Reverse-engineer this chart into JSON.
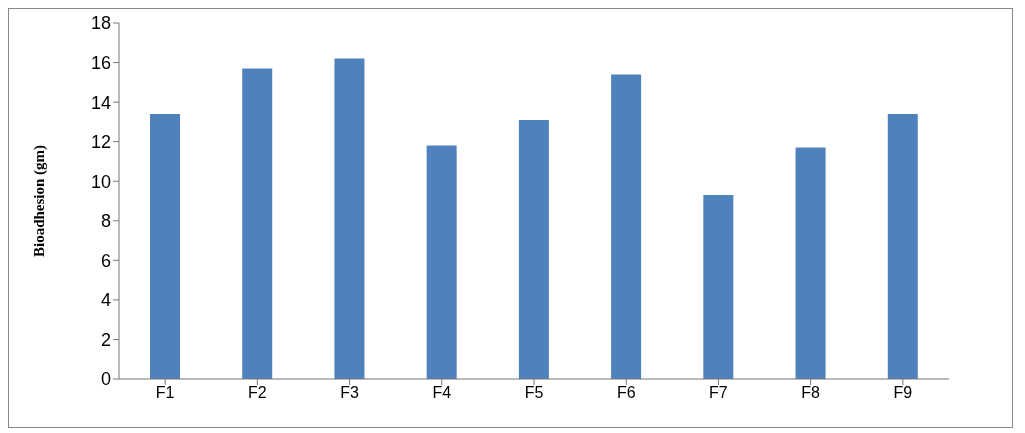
{
  "chart_data": {
    "type": "bar",
    "ylabel": "Bioadhesion (gm)",
    "categories": [
      "F1",
      "F2",
      "F3",
      "F4",
      "F5",
      "F6",
      "F7",
      "F8",
      "F9"
    ],
    "values": [
      13.4,
      15.7,
      16.2,
      11.8,
      13.1,
      15.4,
      9.3,
      11.7,
      13.4
    ],
    "color": "#4f81bd",
    "ylim": [
      0,
      18
    ],
    "yticks": [
      0,
      2,
      4,
      6,
      8,
      10,
      12,
      14,
      16,
      18
    ],
    "grid": false
  }
}
